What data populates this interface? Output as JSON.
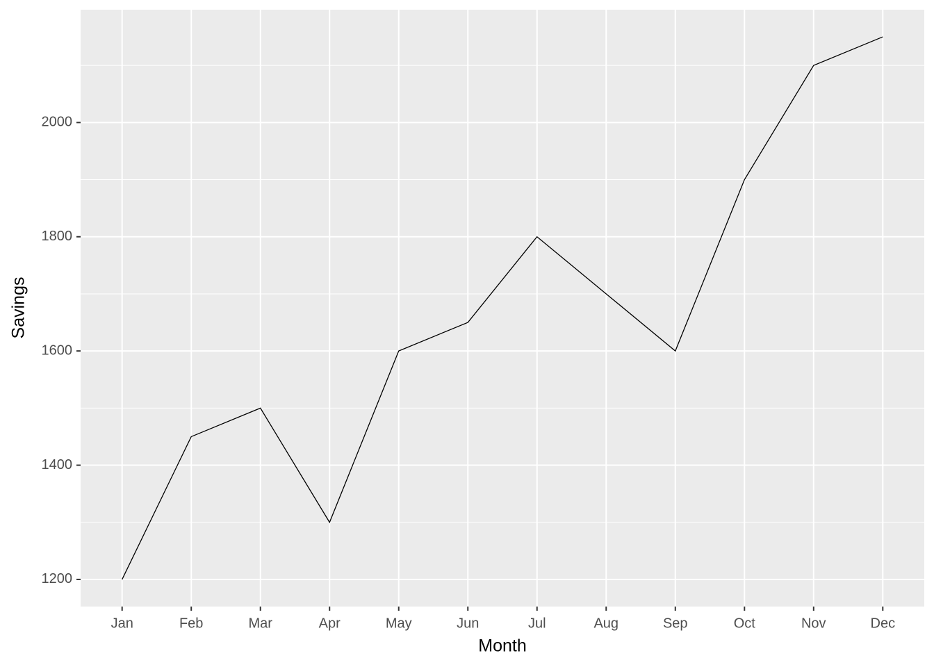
{
  "chart_data": {
    "type": "line",
    "x_label": "Month",
    "y_label": "Savings",
    "categories": [
      "Jan",
      "Feb",
      "Mar",
      "Apr",
      "May",
      "Jun",
      "Jul",
      "Aug",
      "Sep",
      "Oct",
      "Nov",
      "Dec"
    ],
    "values": [
      1200,
      1450,
      1500,
      1300,
      1600,
      1650,
      1800,
      1700,
      1600,
      1900,
      2100,
      2150
    ],
    "color": "#000000",
    "ylim": [
      1152.5,
      2197.5
    ],
    "yticks": [
      1200,
      1400,
      1600,
      1800,
      2000
    ],
    "grid": true
  }
}
